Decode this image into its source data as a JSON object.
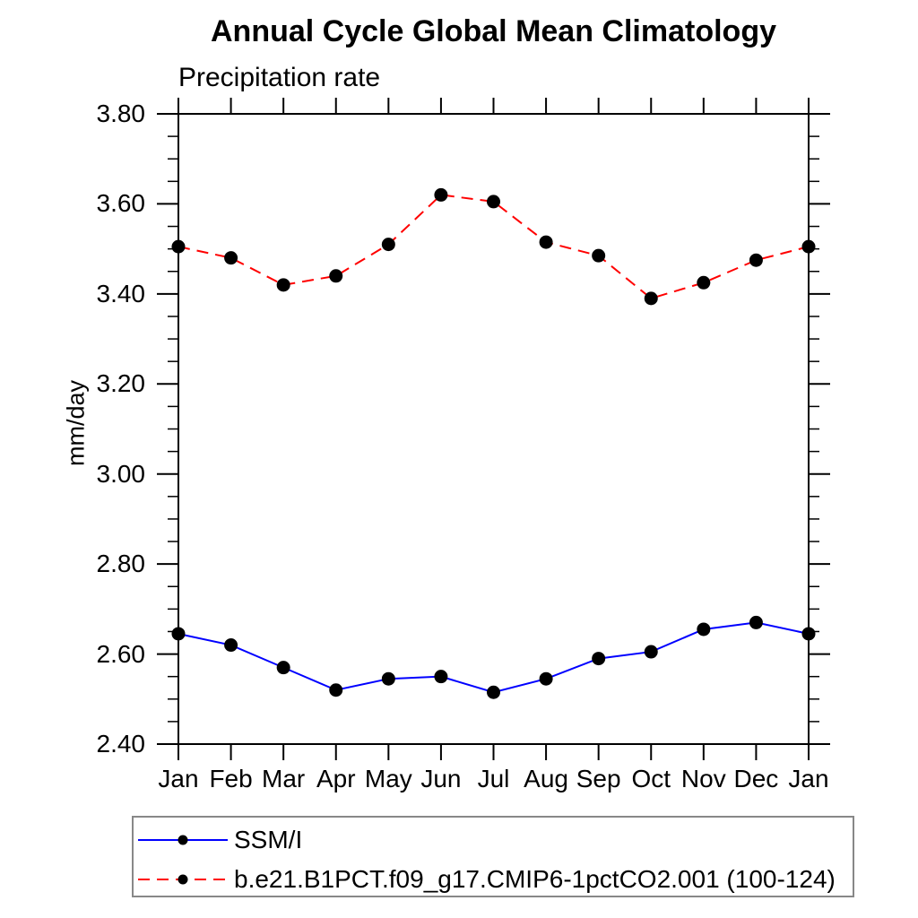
{
  "chart": {
    "title": "Annual Cycle Global Mean Climatology",
    "subtitle": "Precipitation rate",
    "ylabel": "mm/day"
  },
  "chart_data": {
    "type": "line",
    "categories": [
      "Jan",
      "Feb",
      "Mar",
      "Apr",
      "May",
      "Jun",
      "Jul",
      "Aug",
      "Sep",
      "Oct",
      "Nov",
      "Dec",
      "Jan"
    ],
    "series": [
      {
        "name": "SSM/I",
        "color": "#0000ff",
        "line_style": "solid",
        "marker": "black-filled-circle",
        "values": [
          2.645,
          2.62,
          2.57,
          2.52,
          2.545,
          2.55,
          2.515,
          2.545,
          2.59,
          2.605,
          2.655,
          2.67,
          2.645
        ]
      },
      {
        "name": "b.e21.B1PCT.f09_g17.CMIP6-1pctCO2.001 (100-124)",
        "color": "#ff0000",
        "line_style": "dashed",
        "marker": "black-filled-circle",
        "values": [
          3.505,
          3.48,
          3.42,
          3.44,
          3.51,
          3.62,
          3.605,
          3.515,
          3.485,
          3.39,
          3.425,
          3.475,
          3.505
        ]
      }
    ],
    "ylim": [
      2.4,
      3.8
    ],
    "yticks": [
      "2.40",
      "2.60",
      "2.80",
      "3.00",
      "3.20",
      "3.40",
      "3.60",
      "3.80"
    ],
    "y_major_step": 0.2,
    "y_minor_step": 0.05,
    "grid": false,
    "legend_position": "bottom-left",
    "marker_color": "#000000",
    "axis_color": "#000000",
    "legend_border_color": "#888888"
  }
}
